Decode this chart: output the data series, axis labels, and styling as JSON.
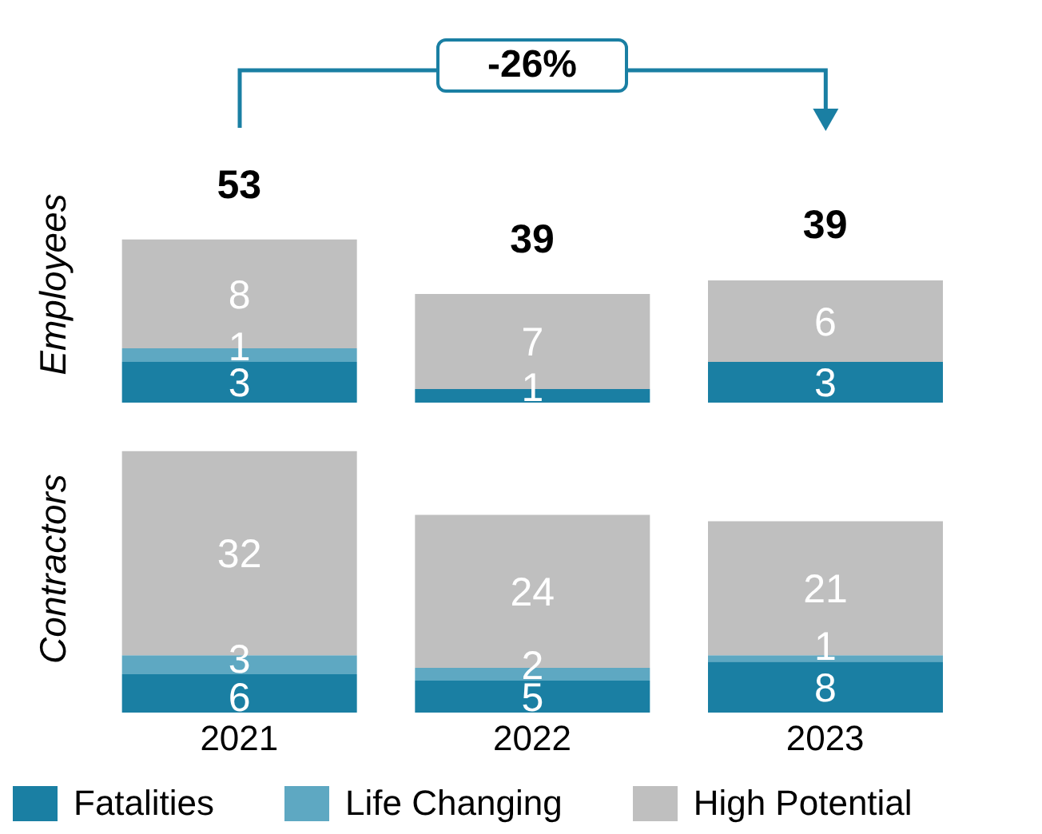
{
  "chart_data": [
    {
      "type": "bar",
      "stacked": true,
      "ylabel": "Employees",
      "categories": [
        "2021",
        "2022",
        "2023"
      ],
      "tick_labels": false,
      "series": [
        {
          "color": "#1a7fa3",
          "values": [
            3,
            1,
            3
          ],
          "value_labels": [
            "3",
            "1",
            "3"
          ]
        },
        {
          "color": "#5ea8c2",
          "values": [
            1,
            0,
            0
          ],
          "value_labels": [
            "1",
            null,
            null
          ]
        },
        {
          "color": "#bfbfbf",
          "values": [
            8,
            7,
            6
          ],
          "value_labels": [
            "8",
            "7",
            "6"
          ]
        }
      ],
      "annotations": [
        "-26%",
        "53",
        "39",
        "39"
      ]
    },
    {
      "type": "bar",
      "stacked": true,
      "ylabel": "Contractors",
      "categories": [
        "2021",
        "2022",
        "2023"
      ],
      "tick_labels": "x",
      "legend": "bottom",
      "data_labels": true,
      "series": [
        {
          "name": "Fatalities",
          "color": "#1a7fa3",
          "values": [
            6,
            5,
            8
          ]
        },
        {
          "name": "Life Changing",
          "color": "#5ea8c2",
          "values": [
            3,
            2,
            1
          ]
        },
        {
          "name": "High Potential",
          "color": "#bfbfbf",
          "values": [
            32,
            24,
            21
          ]
        }
      ]
    }
  ]
}
